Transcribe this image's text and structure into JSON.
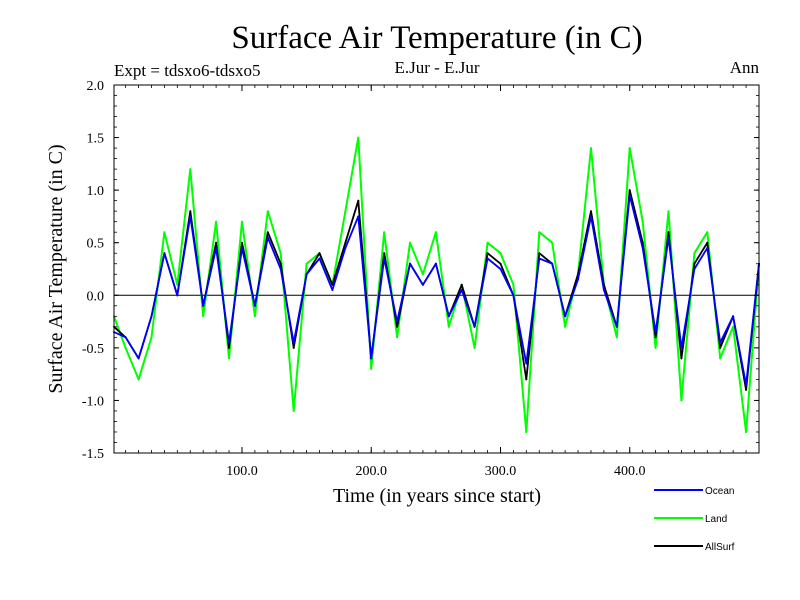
{
  "chart_data": {
    "type": "line",
    "title": "Surface Air Temperature (in C)",
    "experiment": "Expt = tdsxo6-tdsxo5",
    "region": "E.Jur - E.Jur",
    "season": "Ann",
    "xlabel": "Time (in years since start)",
    "ylabel": "Surface Air Temperature (in C)",
    "xlim": [
      1,
      500
    ],
    "ylim": [
      -1.5,
      2.0
    ],
    "x_ticks": [
      100,
      200,
      300,
      400
    ],
    "x_tick_labels": [
      "100.0",
      "200.0",
      "300.0",
      "400.0"
    ],
    "y_ticks": [
      -1.5,
      -1.0,
      -0.5,
      0.0,
      0.5,
      1.0,
      1.5,
      2.0
    ],
    "y_tick_labels": [
      "-1.5",
      "-1.0",
      "-0.5",
      "0.0",
      "0.5",
      "1.0",
      "1.5",
      "2.0"
    ],
    "zero_line": 0.0,
    "x": [
      1,
      10,
      20,
      30,
      40,
      50,
      60,
      70,
      80,
      90,
      100,
      110,
      120,
      130,
      140,
      150,
      160,
      170,
      180,
      190,
      200,
      210,
      220,
      230,
      240,
      250,
      260,
      270,
      280,
      290,
      300,
      310,
      320,
      330,
      340,
      350,
      360,
      370,
      380,
      390,
      400,
      410,
      420,
      430,
      440,
      450,
      460,
      470,
      480,
      490,
      500
    ],
    "series": [
      {
        "name": "Land",
        "color": "#00ff00",
        "values": [
          -0.2,
          -0.5,
          -0.8,
          -0.4,
          0.6,
          0.1,
          1.2,
          -0.2,
          0.7,
          -0.6,
          0.7,
          -0.2,
          0.8,
          0.4,
          -1.1,
          0.3,
          0.4,
          0.1,
          0.8,
          1.5,
          -0.7,
          0.6,
          -0.4,
          0.5,
          0.2,
          0.6,
          -0.3,
          0.1,
          -0.5,
          0.5,
          0.4,
          0.1,
          -1.3,
          0.6,
          0.5,
          -0.3,
          0.2,
          1.4,
          0.1,
          -0.4,
          1.4,
          0.7,
          -0.5,
          0.8,
          -1.0,
          0.4,
          0.6,
          -0.6,
          -0.3,
          -1.3,
          0.3
        ]
      },
      {
        "name": "AllSurf",
        "color": "#000000",
        "values": [
          -0.3,
          -0.4,
          -0.6,
          -0.2,
          0.4,
          0.0,
          0.8,
          -0.1,
          0.5,
          -0.5,
          0.5,
          -0.1,
          0.6,
          0.3,
          -0.5,
          0.2,
          0.4,
          0.1,
          0.5,
          0.9,
          -0.6,
          0.4,
          -0.3,
          0.3,
          0.1,
          0.3,
          -0.2,
          0.1,
          -0.3,
          0.4,
          0.3,
          0.0,
          -0.8,
          0.4,
          0.3,
          -0.2,
          0.2,
          0.8,
          0.1,
          -0.3,
          1.0,
          0.5,
          -0.4,
          0.6,
          -0.6,
          0.3,
          0.5,
          -0.5,
          -0.2,
          -0.9,
          0.3
        ]
      },
      {
        "name": "Ocean",
        "color": "#0000ff",
        "values": [
          -0.35,
          -0.4,
          -0.6,
          -0.2,
          0.4,
          0.0,
          0.75,
          -0.1,
          0.45,
          -0.45,
          0.45,
          -0.1,
          0.55,
          0.25,
          -0.45,
          0.2,
          0.35,
          0.05,
          0.45,
          0.75,
          -0.6,
          0.35,
          -0.25,
          0.3,
          0.1,
          0.3,
          -0.2,
          0.05,
          -0.3,
          0.35,
          0.25,
          0.0,
          -0.65,
          0.35,
          0.3,
          -0.2,
          0.15,
          0.75,
          0.05,
          -0.3,
          0.95,
          0.45,
          -0.35,
          0.55,
          -0.5,
          0.25,
          0.45,
          -0.45,
          -0.2,
          -0.85,
          0.3
        ]
      }
    ],
    "legend": [
      {
        "label": "Ocean",
        "color": "#0000ff"
      },
      {
        "label": "Land",
        "color": "#00ff00"
      },
      {
        "label": "AllSurf",
        "color": "#000000"
      }
    ],
    "legend_position": "bottom-right"
  }
}
